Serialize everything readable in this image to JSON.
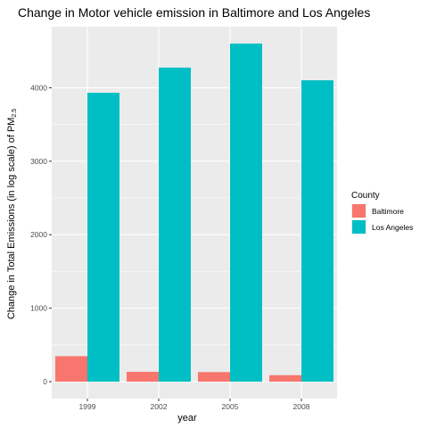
{
  "chart_data": {
    "type": "bar",
    "title": "Change in Motor vehicle emission in Baltimore and Los Angeles",
    "xlabel": "year",
    "ylabel_main": "Change in Total Emissions (in log scale) of PM",
    "ylabel_sub": "2.5",
    "categories": [
      "1999",
      "2002",
      "2005",
      "2008"
    ],
    "series": [
      {
        "name": "Baltimore",
        "color": "#F8766D",
        "values": [
          346.82,
          134.31,
          130.43,
          88.28
        ]
      },
      {
        "name": "Los Angeles",
        "color": "#00BFC4",
        "values": [
          3931.12,
          4274.03,
          4601.41,
          4101.32
        ]
      }
    ],
    "yticks": [
      0,
      1000,
      2000,
      3000,
      4000
    ],
    "ylim": [
      -230,
      4830
    ],
    "grid": true,
    "legend": {
      "title": "County",
      "position": "right"
    }
  }
}
